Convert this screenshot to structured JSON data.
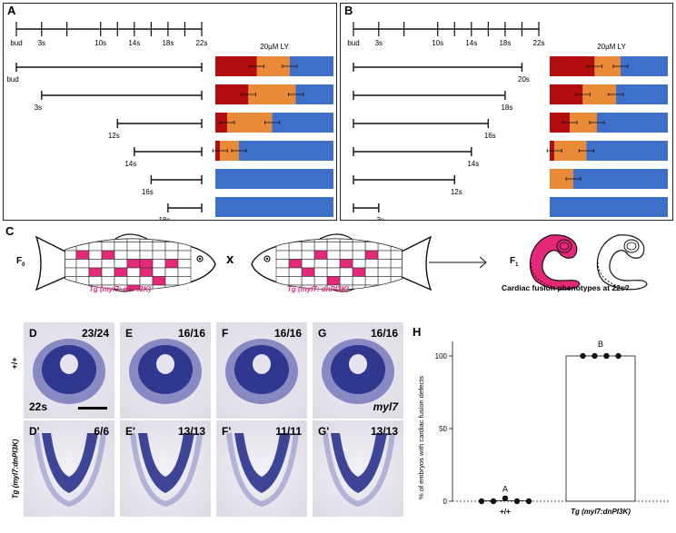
{
  "panels": {
    "A": {
      "label": "A",
      "timeline_ticks": [
        "bud",
        "3s",
        "10s",
        "14s",
        "18s",
        "22s"
      ],
      "bar_title": "20µM LY",
      "treatments": [
        {
          "start_label": "bud",
          "fractions": [
            0.35,
            0.28,
            0.37
          ]
        },
        {
          "start_label": "3s",
          "fractions": [
            0.28,
            0.4,
            0.32
          ]
        },
        {
          "start_label": "12s",
          "fractions": [
            0.1,
            0.38,
            0.52
          ]
        },
        {
          "start_label": "14s",
          "fractions": [
            0.04,
            0.16,
            0.8
          ]
        },
        {
          "start_label": "16s",
          "fractions": [
            0,
            0,
            1
          ]
        },
        {
          "start_label": "18s",
          "fractions": [
            0,
            0,
            1
          ]
        }
      ]
    },
    "B": {
      "label": "B",
      "timeline_ticks": [
        "bud",
        "3s",
        "10s",
        "14s",
        "18s",
        "22s"
      ],
      "bar_title": "20µM LY",
      "treatments": [
        {
          "end_label": "20s",
          "fractions": [
            0.38,
            0.22,
            0.4
          ]
        },
        {
          "end_label": "18s",
          "fractions": [
            0.28,
            0.28,
            0.44
          ]
        },
        {
          "end_label": "16s",
          "fractions": [
            0.17,
            0.23,
            0.6
          ]
        },
        {
          "end_label": "14s",
          "fractions": [
            0.04,
            0.27,
            0.69
          ]
        },
        {
          "end_label": "12s",
          "fractions": [
            0,
            0.2,
            0.8
          ]
        },
        {
          "end_label": "3s",
          "fractions": [
            0,
            0,
            1
          ]
        }
      ]
    },
    "C": {
      "label": "C",
      "f0": "F",
      "f0_sub": "0",
      "cross": "x",
      "f1": "F",
      "f1_sub": "1",
      "fish_label_left": "Tg (myl7: dnPI3K)",
      "fish_label_right": "Tg (myl7: dnPI3K)",
      "question": "Cardiac fusion phenotypes at 22s?"
    },
    "images": {
      "row1_label": "+/+",
      "row2_label": "Tg (myl7:dnPI3K)",
      "stage_label": "22s",
      "marker_label": "myl7",
      "tiles": [
        {
          "tag": "D",
          "count": "23/24"
        },
        {
          "tag": "E",
          "count": "16/16"
        },
        {
          "tag": "F",
          "count": "16/16"
        },
        {
          "tag": "G",
          "count": "16/16"
        },
        {
          "tag": "D'",
          "count": "6/6"
        },
        {
          "tag": "E'",
          "count": "13/13"
        },
        {
          "tag": "F'",
          "count": "11/11"
        },
        {
          "tag": "G'",
          "count": "13/13"
        }
      ]
    },
    "H": {
      "label": "H",
      "ylabel": "% of embryos with cardiac fusion defects",
      "yticks": [
        "0",
        "50",
        "100"
      ],
      "groups": [
        {
          "name": "+/+",
          "letter": "A",
          "values": [
            0,
            0,
            2,
            0,
            0
          ]
        },
        {
          "name": "Tg (myl7:dnPI3K)",
          "letter": "B",
          "values": [
            100,
            100,
            100,
            100
          ]
        }
      ]
    }
  },
  "colors": {
    "red": "#b40d10",
    "orange": "#e98a39",
    "blue": "#3e6fc9",
    "magenta": "#e6287b",
    "stain": "#262d8a"
  }
}
